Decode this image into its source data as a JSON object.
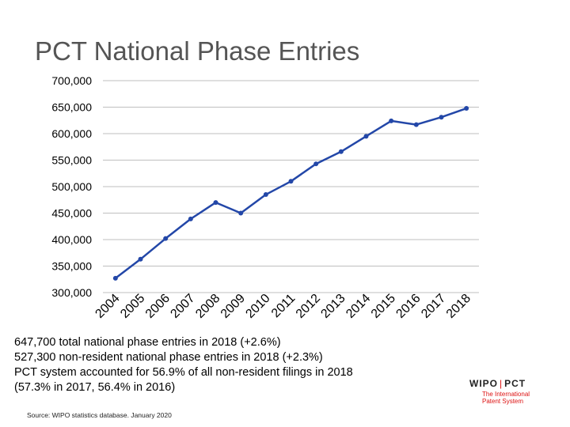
{
  "title": "PCT National Phase Entries",
  "notes": [
    "647,700 total national phase entries in 2018 (+2.6%)",
    "527,300 non-resident national phase entries in 2018 (+2.3%)",
    "PCT system accounted for 56.9% of all non-resident filings in 2018",
    "(57.3% in 2017, 56.4% in 2016)"
  ],
  "source": "Source:  WIPO statistics database. January 2020",
  "logo": {
    "word_left": "WIPO",
    "separator": "|",
    "word_right": "PCT",
    "tagline": [
      "The International",
      "Patent System"
    ]
  },
  "colors": {
    "series": "#2347a8",
    "grid": "#bfbfbf",
    "logo_red": "#d11111"
  },
  "chart_data": {
    "type": "line",
    "title": "PCT National Phase Entries",
    "xlabel": "",
    "ylabel": "",
    "x": [
      "2004",
      "2005",
      "2006",
      "2007",
      "2008",
      "2009",
      "2010",
      "2011",
      "2012",
      "2013",
      "2014",
      "2015",
      "2016",
      "2017",
      "2018"
    ],
    "series": [
      {
        "values": [
          327000,
          363000,
          402000,
          439000,
          470000,
          450000,
          485000,
          510000,
          543000,
          566000,
          595000,
          624000,
          617000,
          631000,
          647700
        ]
      }
    ],
    "ylim": [
      300000,
      700000
    ],
    "yticks": [
      300000,
      350000,
      400000,
      450000,
      500000,
      550000,
      600000,
      650000,
      700000
    ],
    "ytick_labels": [
      "300,000",
      "350,000",
      "400,000",
      "450,000",
      "500,000",
      "550,000",
      "600,000",
      "650,000",
      "700,000"
    ],
    "grid": true,
    "legend": "none"
  }
}
